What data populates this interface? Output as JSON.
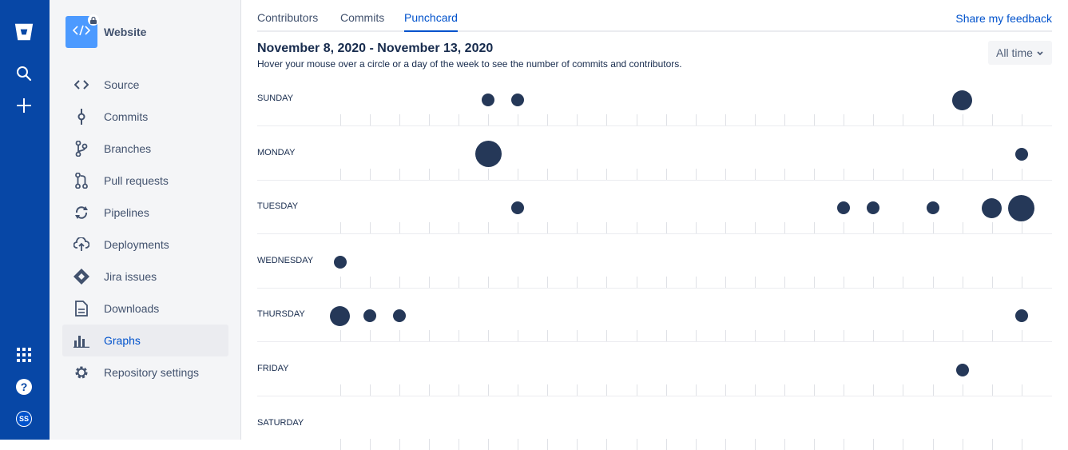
{
  "global_nav": {
    "avatar_initials": "SS",
    "icons": [
      "bitbucket-logo-icon",
      "search-icon",
      "create-icon",
      "app-switcher-icon",
      "help-icon"
    ]
  },
  "repo": {
    "name": "Website",
    "icon": "code-icon",
    "private_badge": "lock-icon"
  },
  "sidebar": {
    "items": [
      {
        "label": "Source",
        "icon": "source-icon"
      },
      {
        "label": "Commits",
        "icon": "commit-icon"
      },
      {
        "label": "Branches",
        "icon": "branch-icon"
      },
      {
        "label": "Pull requests",
        "icon": "pull-request-icon"
      },
      {
        "label": "Pipelines",
        "icon": "pipelines-icon"
      },
      {
        "label": "Deployments",
        "icon": "deployments-icon"
      },
      {
        "label": "Jira issues",
        "icon": "jira-icon"
      },
      {
        "label": "Downloads",
        "icon": "downloads-icon"
      },
      {
        "label": "Graphs",
        "icon": "graphs-icon",
        "active": true
      },
      {
        "label": "Repository settings",
        "icon": "settings-icon"
      }
    ]
  },
  "tabs": [
    {
      "label": "Contributors"
    },
    {
      "label": "Commits"
    },
    {
      "label": "Punchcard",
      "active": true
    }
  ],
  "feedback_link": "Share my feedback",
  "date_range": "November 8, 2020 - November 13, 2020",
  "hint": "Hover your mouse over a circle or a day of the week to see the number of commits and contributors.",
  "time_filter": "All time",
  "colors": {
    "rail": "#0747A6",
    "accent": "#0052CC",
    "dot": "#253858"
  },
  "chart_data": {
    "type": "scatter",
    "x_axis": "hour of day (0-23)",
    "days": [
      "SUNDAY",
      "MONDAY",
      "TUESDAY",
      "WEDNESDAY",
      "THURSDAY",
      "FRIDAY",
      "SATURDAY"
    ],
    "points": [
      {
        "day": 0,
        "hour": 5,
        "size": 1
      },
      {
        "day": 0,
        "hour": 6,
        "size": 1
      },
      {
        "day": 0,
        "hour": 21,
        "size": 2
      },
      {
        "day": 1,
        "hour": 5,
        "size": 3
      },
      {
        "day": 1,
        "hour": 23,
        "size": 1
      },
      {
        "day": 2,
        "hour": 6,
        "size": 1
      },
      {
        "day": 2,
        "hour": 17,
        "size": 1
      },
      {
        "day": 2,
        "hour": 18,
        "size": 1
      },
      {
        "day": 2,
        "hour": 20,
        "size": 1
      },
      {
        "day": 2,
        "hour": 22,
        "size": 2
      },
      {
        "day": 2,
        "hour": 23,
        "size": 3
      },
      {
        "day": 3,
        "hour": 0,
        "size": 1
      },
      {
        "day": 4,
        "hour": 0,
        "size": 2
      },
      {
        "day": 4,
        "hour": 1,
        "size": 1
      },
      {
        "day": 4,
        "hour": 2,
        "size": 1
      },
      {
        "day": 4,
        "hour": 23,
        "size": 1
      },
      {
        "day": 5,
        "hour": 21,
        "size": 1
      }
    ]
  }
}
